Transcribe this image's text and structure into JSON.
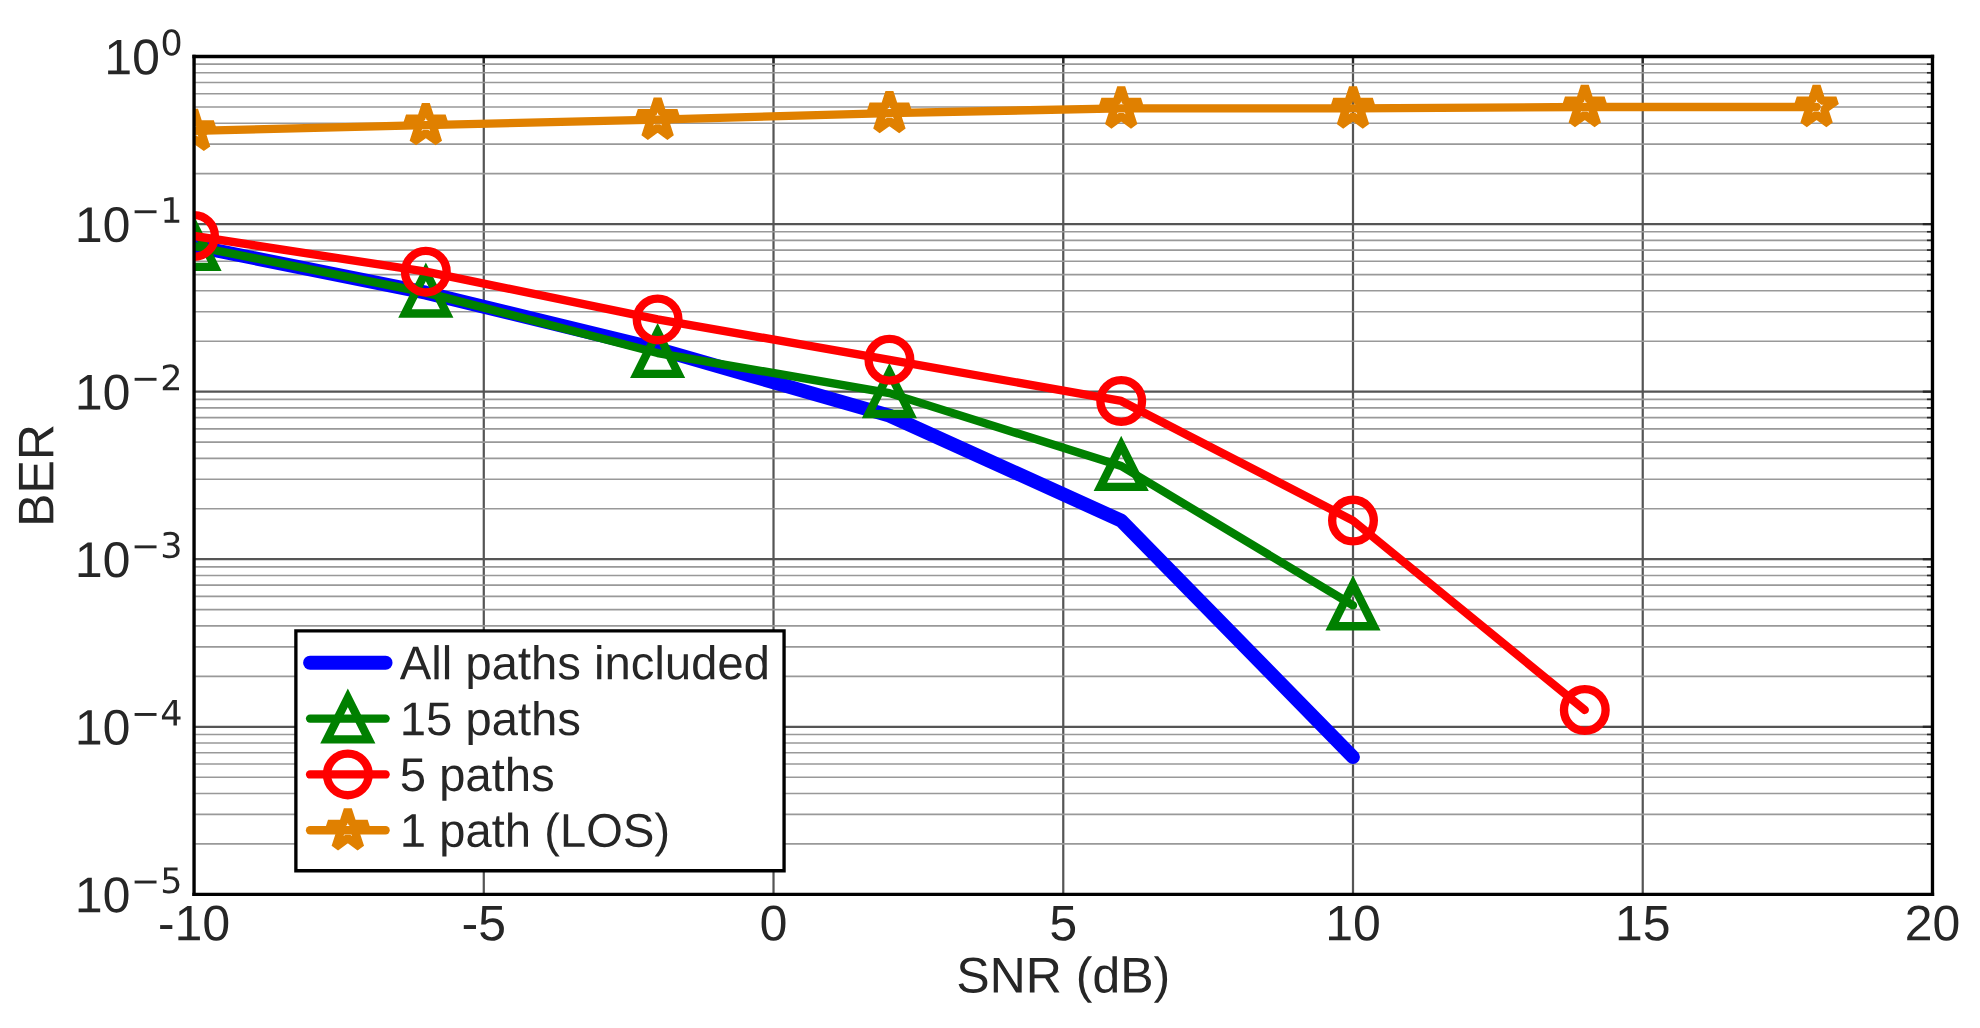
{
  "chart_data": {
    "type": "line",
    "xlabel": "SNR (dB)",
    "ylabel": "BER",
    "log": "y",
    "xlim": [
      -10,
      20
    ],
    "xticks": [
      -10,
      -5,
      0,
      5,
      10,
      15,
      20
    ],
    "ylim": [
      1e-05,
      1
    ],
    "yticks": [
      {
        "value": 1e-05,
        "label": "10$^{−5}$"
      },
      {
        "value": 0.0001,
        "label": "10$^{−4}$"
      },
      {
        "value": 0.001,
        "label": "10$^{−3}$"
      },
      {
        "value": 0.01,
        "label": "10$^{−2}$"
      },
      {
        "value": 0.1,
        "label": "10$^{−1}$"
      },
      {
        "value": 1,
        "label": "10$^{0}$"
      }
    ],
    "grid": true,
    "legend": "bottom left",
    "series": [
      {
        "name": "All paths included",
        "color": "#0000ff",
        "marker": "none",
        "x": [
          -10,
          -6,
          -2,
          2,
          6,
          10
        ],
        "values": [
          0.074,
          0.039,
          0.018,
          0.0072,
          0.0017,
          6.6e-05
        ]
      },
      {
        "name": "15 paths",
        "color": "#008000",
        "marker": "triangle",
        "x": [
          -10,
          -6,
          -2,
          2,
          6,
          10
        ],
        "values": [
          0.074,
          0.039,
          0.017,
          0.0098,
          0.0036,
          0.00053
        ]
      },
      {
        "name": "5 paths",
        "color": "#ff0000",
        "marker": "circle",
        "x": [
          -10,
          -6,
          -2,
          2,
          6,
          10,
          14
        ],
        "values": [
          0.085,
          0.052,
          0.027,
          0.0155,
          0.0088,
          0.0017,
          0.000126
        ]
      },
      {
        "name": "1 path (LOS)",
        "color": "#e08000",
        "marker": "star",
        "x": [
          -10,
          -6,
          -2,
          2,
          6,
          10,
          14,
          18
        ],
        "values": [
          0.36,
          0.39,
          0.42,
          0.46,
          0.49,
          0.49,
          0.5,
          0.5
        ]
      }
    ]
  }
}
